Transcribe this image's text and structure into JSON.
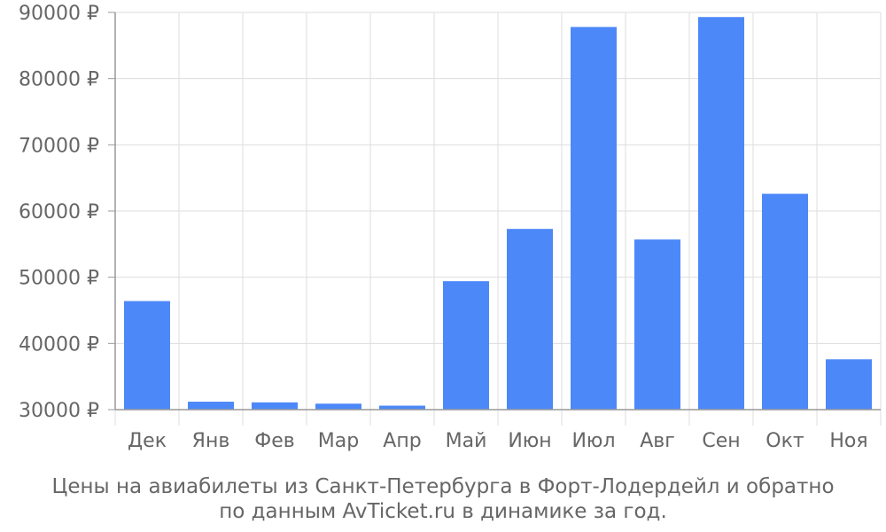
{
  "chart_data": {
    "type": "bar",
    "categories": [
      "Дек",
      "Янв",
      "Фев",
      "Мар",
      "Апр",
      "Май",
      "Июн",
      "Июл",
      "Авг",
      "Сен",
      "Окт",
      "Ноя"
    ],
    "values": [
      46400,
      31200,
      31100,
      30900,
      30600,
      49400,
      57300,
      87800,
      55700,
      89300,
      62600,
      37600
    ],
    "ylim": [
      30000,
      90000
    ],
    "yticks": [
      30000,
      40000,
      50000,
      60000,
      70000,
      80000,
      90000
    ],
    "ytick_labels": [
      "30000 ₽",
      "40000 ₽",
      "50000 ₽",
      "60000 ₽",
      "70000 ₽",
      "80000 ₽",
      "90000 ₽"
    ],
    "caption_lines": [
      "Цены на авиабилеты из Санкт-Петербурга в Форт-Лодердейл и обратно",
      "по данным AvTicket.ru в динамике за год."
    ],
    "grid": true,
    "colors": {
      "bar": "#4d88f9",
      "grid": "#dddddd",
      "axis": "#999999",
      "text": "#666666"
    }
  }
}
